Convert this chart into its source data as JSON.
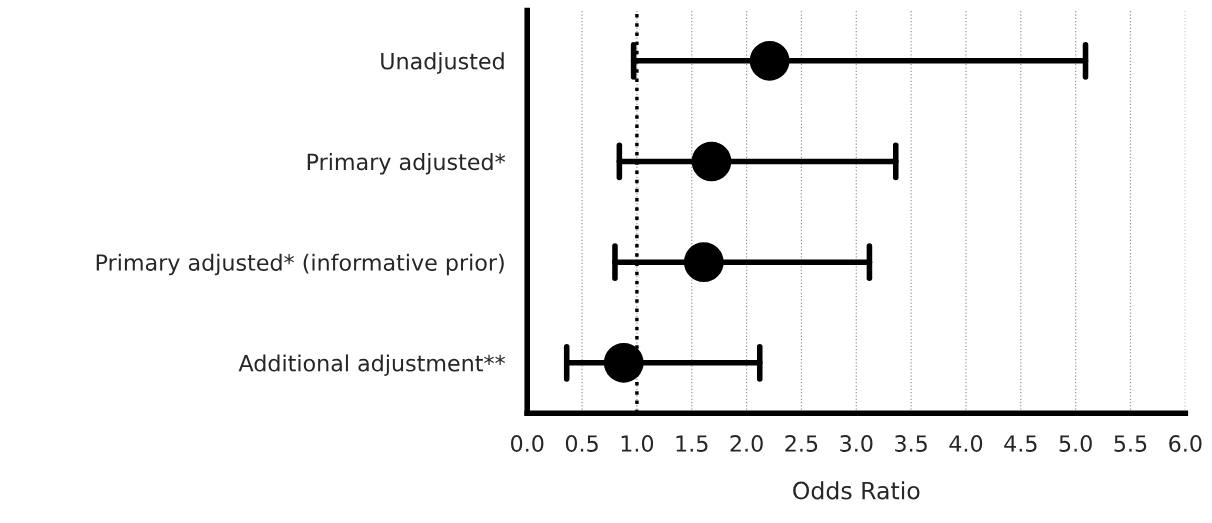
{
  "chart_data": {
    "type": "scatter",
    "orientation": "horizontal",
    "categories": [
      "Unadjusted",
      "Primary adjusted*",
      "Primary adjusted* (informative prior)",
      "Additional adjustment**"
    ],
    "values": [
      2.21,
      1.68,
      1.61,
      0.88
    ],
    "errors": [
      [
        0.97,
        5.09
      ],
      [
        0.84,
        3.36
      ],
      [
        0.8,
        3.12
      ],
      [
        0.36,
        2.12
      ]
    ],
    "color": "#000000",
    "marker": "circle",
    "xlabel": "Odds Ratio",
    "xlim": [
      0,
      6
    ],
    "xticks": [
      {
        "value": 0,
        "label": "0.0"
      },
      0.5,
      {
        "value": 1,
        "label": "1.0"
      },
      1.5,
      {
        "value": 2,
        "label": "2.0"
      },
      2.5,
      {
        "value": 3,
        "label": "3.0"
      },
      3.5,
      {
        "value": 4,
        "label": "4.0"
      },
      4.5,
      {
        "value": 5,
        "label": "5.0"
      },
      5.5,
      {
        "value": 6,
        "label": "6.0"
      }
    ],
    "grid": "x",
    "ref_lines": [
      {
        "axis": "x",
        "value": 1,
        "line_style": "dotted",
        "color": "#000000"
      }
    ]
  }
}
